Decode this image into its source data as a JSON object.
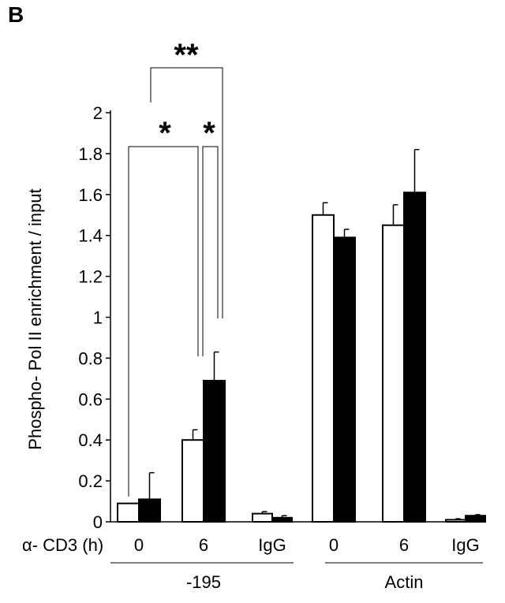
{
  "panel_label": "B",
  "chart_data": {
    "type": "bar",
    "ylabel": "Phospho- Pol II enrichment / input",
    "ylim": [
      0,
      2
    ],
    "yticks": [
      "0",
      "0.2",
      "0.4",
      "0.6",
      "0.8",
      "1",
      "1.2",
      "1.4",
      "1.6",
      "1.8",
      "2"
    ],
    "xaxis_caption": "α- CD3 (h)",
    "categories": [
      "0",
      "6",
      "IgG",
      "0",
      "6",
      "IgG"
    ],
    "groups": [
      {
        "label": "-195",
        "categories": [
          0,
          1,
          2
        ]
      },
      {
        "label": "Actin",
        "categories": [
          3,
          4,
          5
        ]
      }
    ],
    "series": [
      {
        "color": "#ffffff",
        "values": [
          0.09,
          0.4,
          0.04,
          1.5,
          1.45,
          0.01
        ],
        "errors": [
          0.0,
          0.05,
          0.01,
          0.06,
          0.1,
          0.005
        ]
      },
      {
        "color": "#000000",
        "values": [
          0.11,
          0.69,
          0.02,
          1.39,
          1.61,
          0.03
        ],
        "errors": [
          0.13,
          0.14,
          0.01,
          0.04,
          0.21,
          0.005
        ]
      }
    ],
    "annotations": [
      "*",
      "*",
      "**"
    ]
  }
}
